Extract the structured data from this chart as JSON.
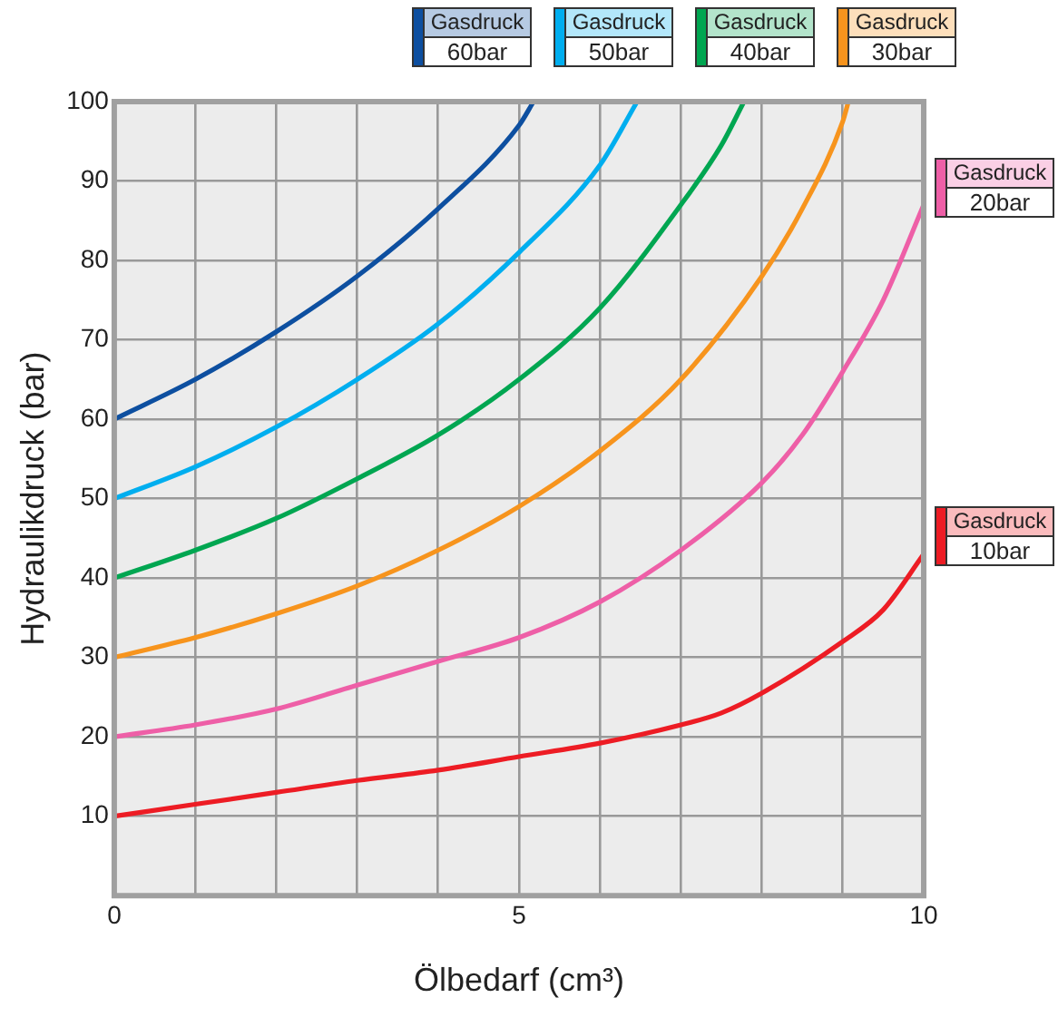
{
  "chart_data": {
    "type": "line",
    "xlabel": "Ölbedarf (cm³)",
    "ylabel": "Hydraulikdruck (bar)",
    "xlim": [
      0,
      10
    ],
    "ylim": [
      0,
      100
    ],
    "xticks": [
      0,
      {
        "value": 1,
        "label": null
      },
      {
        "value": 2,
        "label": null
      },
      {
        "value": 3,
        "label": null
      },
      {
        "value": 4,
        "label": null
      },
      5,
      {
        "value": 6,
        "label": null
      },
      {
        "value": 7,
        "label": null
      },
      {
        "value": 8,
        "label": null
      },
      {
        "value": 9,
        "label": null
      },
      10
    ],
    "yticks": [
      {
        "value": 0,
        "label": null
      },
      10,
      20,
      30,
      40,
      50,
      60,
      70,
      80,
      90,
      100
    ],
    "grid": true,
    "legend": "top right",
    "series": [
      {
        "name": "Gasdruck 60bar",
        "color": "#0d4fa0",
        "x": [
          0,
          1,
          2,
          3,
          4,
          5,
          5.18
        ],
        "values": [
          60,
          65,
          71,
          78,
          86.5,
          97,
          100
        ]
      },
      {
        "name": "Gasdruck 50bar",
        "color": "#00aeef",
        "x": [
          0,
          1,
          2,
          3,
          4,
          5,
          6,
          6.46
        ],
        "values": [
          50,
          54,
          59,
          65,
          72,
          81,
          92,
          100
        ]
      },
      {
        "name": "Gasdruck 40bar",
        "color": "#00a651",
        "x": [
          0,
          1,
          2,
          3,
          4,
          5,
          6,
          7,
          7.5,
          7.78
        ],
        "values": [
          40,
          43.5,
          47.5,
          52.5,
          58,
          65,
          74,
          87,
          94.5,
          100
        ]
      },
      {
        "name": "Gasdruck 30bar",
        "color": "#f7941d",
        "x": [
          0,
          1,
          2,
          3,
          4,
          5,
          6,
          7,
          8,
          8.5,
          9,
          9.07
        ],
        "values": [
          30,
          32.5,
          35.5,
          39,
          43.5,
          49,
          56,
          65,
          78,
          86.5,
          97.5,
          100
        ]
      },
      {
        "name": "Gasdruck 20bar",
        "color": "#ee5fa7",
        "x": [
          0,
          1,
          2,
          3,
          4,
          5,
          6,
          7,
          8,
          8.5,
          9,
          9.5,
          10
        ],
        "values": [
          20,
          21.5,
          23.5,
          26.5,
          29.5,
          32.5,
          37,
          43.5,
          52,
          58,
          66,
          75,
          87
        ]
      },
      {
        "name": "Gasdruck 10bar",
        "color": "#ed1c24",
        "x": [
          0,
          1,
          2,
          3,
          4,
          5,
          6,
          7,
          7.5,
          8,
          9,
          9.5,
          10
        ],
        "values": [
          10,
          11.5,
          13,
          14.5,
          15.8,
          17.5,
          19.2,
          21.5,
          23,
          25.5,
          32,
          36,
          43
        ]
      }
    ]
  }
}
